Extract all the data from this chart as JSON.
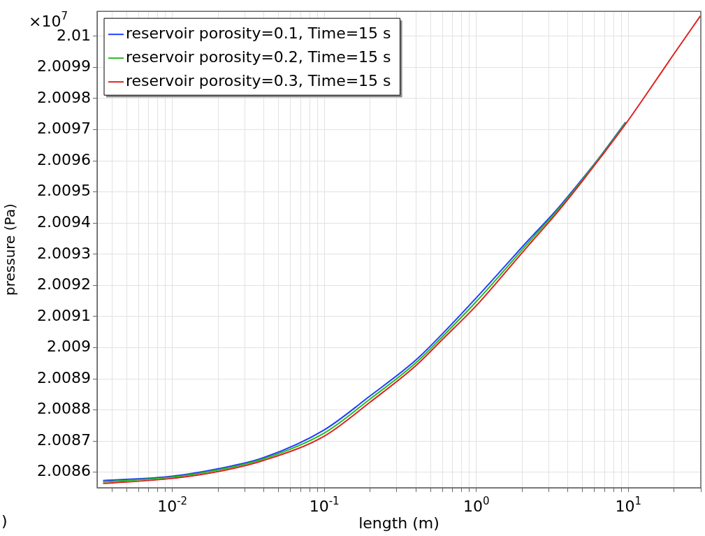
{
  "chart_data": {
    "type": "line",
    "xlabel": "length (m)",
    "ylabel": "pressure (Pa)",
    "annotations": [
      "×10$^{7}$",
      ")"
    ],
    "log": "x",
    "grid": true,
    "legend": "top left",
    "marker": "none",
    "line_style": "solid",
    "xlim": [
      0.0032,
      30
    ],
    "ylim": [
      2.00855,
      2.01008
    ],
    "xticks": [
      {
        "value": 0.004,
        "label": null
      },
      {
        "value": 0.005,
        "label": null
      },
      {
        "value": 0.006,
        "label": null
      },
      {
        "value": 0.007,
        "label": null
      },
      {
        "value": 0.008,
        "label": null
      },
      {
        "value": 0.009,
        "label": null
      },
      {
        "value": 0.01,
        "label": "10$^{-2}$"
      },
      {
        "value": 0.02,
        "label": null
      },
      {
        "value": 0.03,
        "label": null
      },
      {
        "value": 0.04,
        "label": null
      },
      {
        "value": 0.05,
        "label": null
      },
      {
        "value": 0.06,
        "label": null
      },
      {
        "value": 0.07,
        "label": null
      },
      {
        "value": 0.08,
        "label": null
      },
      {
        "value": 0.09,
        "label": null
      },
      {
        "value": 0.1,
        "label": "10$^{-1}$"
      },
      {
        "value": 0.2,
        "label": null
      },
      {
        "value": 0.3,
        "label": null
      },
      {
        "value": 0.4,
        "label": null
      },
      {
        "value": 0.5,
        "label": null
      },
      {
        "value": 0.6,
        "label": null
      },
      {
        "value": 0.7,
        "label": null
      },
      {
        "value": 0.8,
        "label": null
      },
      {
        "value": 0.9,
        "label": null
      },
      {
        "value": 1,
        "label": "10$^{0}$"
      },
      {
        "value": 2,
        "label": null
      },
      {
        "value": 3,
        "label": null
      },
      {
        "value": 4,
        "label": null
      },
      {
        "value": 5,
        "label": null
      },
      {
        "value": 6,
        "label": null
      },
      {
        "value": 7,
        "label": null
      },
      {
        "value": 8,
        "label": null
      },
      {
        "value": 9,
        "label": null
      },
      {
        "value": 10,
        "label": "10$^{1}$"
      },
      {
        "value": 20,
        "label": null
      },
      {
        "value": 30,
        "label": null
      }
    ],
    "yticks": [
      2.0086,
      2.0087,
      2.0088,
      2.0089,
      2.009,
      2.0091,
      2.0092,
      2.0093,
      2.0094,
      2.0095,
      2.0096,
      2.0097,
      2.0098,
      2.0099,
      2.01
    ],
    "x": [
      0.0035,
      0.01,
      0.02,
      0.04,
      0.1,
      0.2,
      0.4,
      0.6,
      1,
      1.5,
      2.2,
      3.3,
      4.6,
      6.6,
      9.6,
      13.6,
      19.7,
      29.8
    ],
    "series": [
      {
        "name": "reservoir porosity=0.1, Time=15 s",
        "color": "#1f3fff",
        "values": [
          2.008573,
          2.008587,
          2.008611,
          2.008647,
          2.008736,
          2.008845,
          2.00896,
          2.009045,
          2.00916,
          2.009255,
          2.009345,
          2.009437,
          2.009521,
          2.009617,
          2.009724,
          null,
          null,
          null
        ]
      },
      {
        "name": "reservoir porosity=0.2, Time=15 s",
        "color": "#22bb22",
        "values": [
          2.008569,
          2.008584,
          2.008607,
          2.008643,
          2.008726,
          2.008835,
          2.008951,
          2.009036,
          2.009148,
          2.009244,
          2.009337,
          2.009432,
          2.009517,
          2.009615,
          2.009721,
          null,
          null,
          null
        ]
      },
      {
        "name": "reservoir porosity=0.3, Time=15 s",
        "color": "#dd2222",
        "values": [
          2.008564,
          2.00858,
          2.008602,
          2.008638,
          2.008716,
          2.008825,
          2.008942,
          2.009027,
          2.009135,
          2.009233,
          2.009328,
          2.009426,
          2.009513,
          2.009612,
          2.009718,
          2.009824,
          2.009939,
          2.010065
        ]
      }
    ]
  }
}
